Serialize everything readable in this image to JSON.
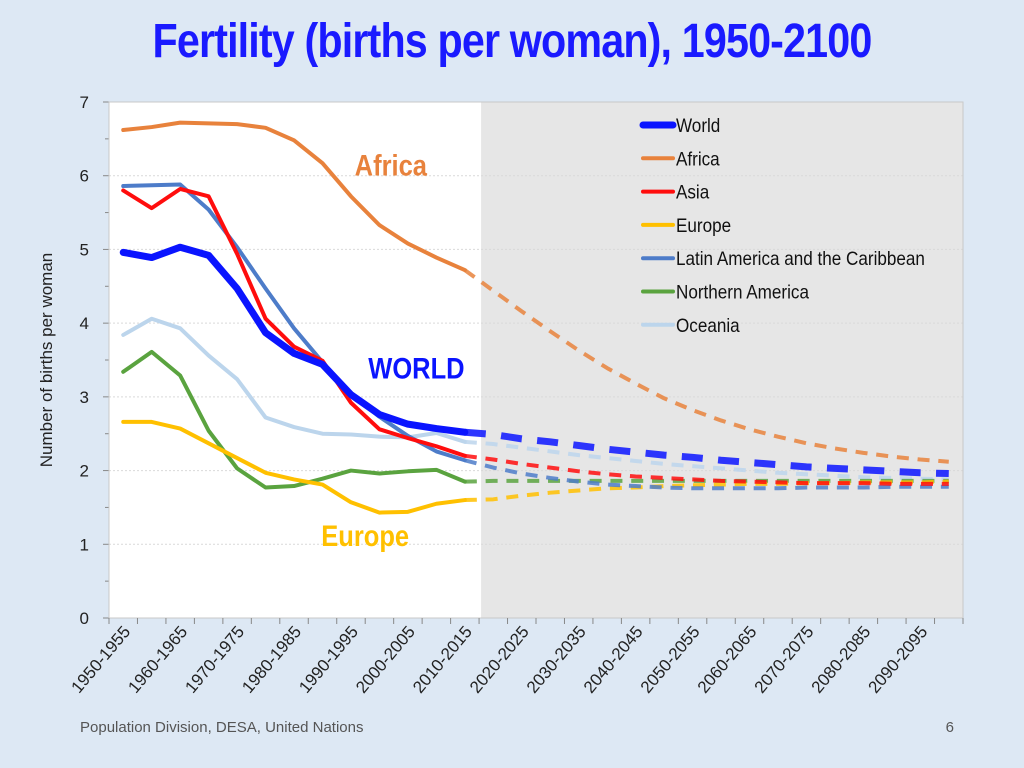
{
  "slide": {
    "title": "Fertility (births per woman), 1950-2100",
    "source": "Population Division, DESA, United Nations",
    "page_number": "6"
  },
  "chart_data": {
    "type": "line",
    "title": "Fertility (births per woman), 1950-2100",
    "xlabel": "",
    "ylabel": "Number of births per woman",
    "ylim": [
      0,
      7
    ],
    "yticks": [
      0,
      1,
      2,
      3,
      4,
      5,
      6,
      7
    ],
    "x_periods": [
      "1950-1955",
      "1955-1960",
      "1960-1965",
      "1965-1970",
      "1970-1975",
      "1975-1980",
      "1980-1985",
      "1985-1990",
      "1990-1995",
      "1995-2000",
      "2000-2005",
      "2005-2010",
      "2010-2015",
      "2015-2020",
      "2020-2025",
      "2025-2030",
      "2030-2035",
      "2035-2040",
      "2040-2045",
      "2045-2050",
      "2050-2055",
      "2055-2060",
      "2060-2065",
      "2065-2070",
      "2070-2075",
      "2075-2080",
      "2080-2085",
      "2085-2090",
      "2090-2095",
      "2095-2100"
    ],
    "x_tick_labels": [
      "1950-1955",
      "1960-1965",
      "1970-1975",
      "1980-1985",
      "1990-1995",
      "2000-2005",
      "2010-2015",
      "2020-2025",
      "2030-2035",
      "2040-2045",
      "2050-2055",
      "2060-2065",
      "2070-2075",
      "2080-2085",
      "2090-2095"
    ],
    "projection_start_index": 13,
    "projection_shaded": true,
    "legend_position": "top-right",
    "series": [
      {
        "name": "World",
        "color": "#0a14ff",
        "width": 7,
        "values": [
          4.96,
          4.89,
          5.03,
          4.92,
          4.47,
          3.87,
          3.59,
          3.44,
          3.03,
          2.76,
          2.63,
          2.57,
          2.52,
          2.49,
          2.43,
          2.39,
          2.34,
          2.29,
          2.25,
          2.21,
          2.18,
          2.14,
          2.11,
          2.08,
          2.05,
          2.03,
          2.01,
          1.99,
          1.97,
          1.96
        ]
      },
      {
        "name": "Africa",
        "color": "#e8823c",
        "width": 4,
        "values": [
          6.62,
          6.66,
          6.72,
          6.71,
          6.7,
          6.65,
          6.48,
          6.17,
          5.72,
          5.33,
          5.08,
          4.89,
          4.72,
          4.44,
          4.16,
          3.89,
          3.63,
          3.39,
          3.18,
          2.98,
          2.82,
          2.68,
          2.56,
          2.46,
          2.37,
          2.3,
          2.24,
          2.19,
          2.15,
          2.12
        ]
      },
      {
        "name": "Asia",
        "color": "#ff0d0d",
        "width": 4,
        "values": [
          5.8,
          5.56,
          5.82,
          5.72,
          4.94,
          4.06,
          3.68,
          3.49,
          2.92,
          2.56,
          2.44,
          2.33,
          2.2,
          2.15,
          2.09,
          2.04,
          1.99,
          1.95,
          1.92,
          1.9,
          1.88,
          1.86,
          1.85,
          1.84,
          1.83,
          1.83,
          1.83,
          1.82,
          1.82,
          1.82
        ]
      },
      {
        "name": "Europe",
        "color": "#ffc000",
        "width": 4,
        "values": [
          2.66,
          2.66,
          2.57,
          2.37,
          2.17,
          1.97,
          1.88,
          1.81,
          1.57,
          1.43,
          1.44,
          1.55,
          1.6,
          1.61,
          1.66,
          1.7,
          1.73,
          1.76,
          1.77,
          1.79,
          1.8,
          1.81,
          1.82,
          1.82,
          1.83,
          1.83,
          1.84,
          1.84,
          1.84,
          1.85
        ]
      },
      {
        "name": "Latin America and the Caribbean",
        "color": "#4d7cc9",
        "width": 4,
        "values": [
          5.86,
          5.87,
          5.88,
          5.54,
          5.03,
          4.47,
          3.93,
          3.47,
          3.04,
          2.73,
          2.47,
          2.26,
          2.14,
          2.04,
          1.96,
          1.9,
          1.85,
          1.81,
          1.79,
          1.77,
          1.76,
          1.76,
          1.76,
          1.76,
          1.77,
          1.77,
          1.77,
          1.78,
          1.78,
          1.78
        ]
      },
      {
        "name": "Northern America",
        "color": "#5aa33f",
        "width": 4,
        "values": [
          3.34,
          3.61,
          3.29,
          2.54,
          2.03,
          1.77,
          1.79,
          1.89,
          2.0,
          1.96,
          1.99,
          2.01,
          1.85,
          1.86,
          1.86,
          1.86,
          1.86,
          1.86,
          1.86,
          1.86,
          1.86,
          1.86,
          1.86,
          1.86,
          1.86,
          1.86,
          1.86,
          1.86,
          1.86,
          1.86
        ]
      },
      {
        "name": "Oceania",
        "color": "#bcd5ec",
        "width": 4,
        "values": [
          3.84,
          4.06,
          3.93,
          3.56,
          3.24,
          2.72,
          2.59,
          2.5,
          2.49,
          2.46,
          2.45,
          2.51,
          2.39,
          2.36,
          2.31,
          2.26,
          2.21,
          2.17,
          2.13,
          2.09,
          2.06,
          2.03,
          2.0,
          1.97,
          1.95,
          1.93,
          1.91,
          1.9,
          1.89,
          1.88
        ]
      }
    ],
    "annotations": [
      {
        "text": "Africa",
        "color": "#e8823c",
        "x_index": 9.4,
        "y": 6.0
      },
      {
        "text": "WORLD",
        "color": "#0a14ff",
        "x_index": 10.3,
        "y": 3.25
      },
      {
        "text": "Europe",
        "color": "#ffc000",
        "x_index": 8.5,
        "y": 0.98
      }
    ]
  }
}
